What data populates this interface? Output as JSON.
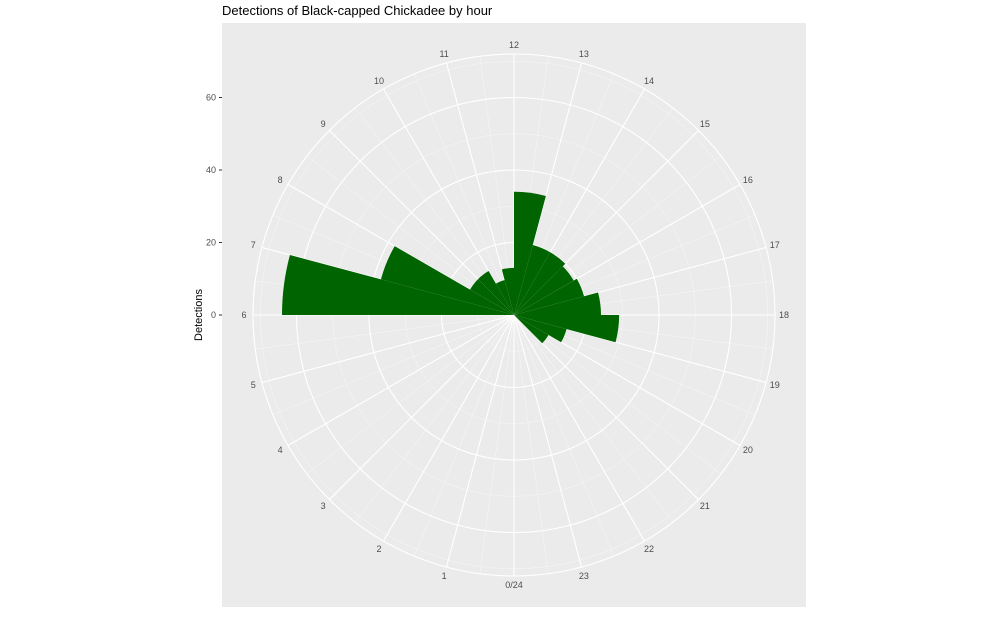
{
  "chart_data": {
    "type": "bar",
    "coordinate_system": "polar",
    "title": "Detections of Black-capped Chickadee by hour",
    "xlabel": "",
    "ylabel": "Detections",
    "categories": [
      "0",
      "1",
      "2",
      "3",
      "4",
      "5",
      "6",
      "7",
      "8",
      "9",
      "10",
      "11",
      "12",
      "13",
      "14",
      "15",
      "16",
      "17",
      "18",
      "19",
      "20",
      "21",
      "22",
      "23"
    ],
    "values": [
      0,
      0,
      0,
      0,
      0,
      0,
      64,
      38,
      14,
      14,
      10,
      13,
      34,
      20,
      20,
      19,
      20,
      24,
      29,
      15,
      11,
      0,
      0,
      0
    ],
    "bar_color": "#006400",
    "hour_labels": [
      "0/24",
      "1",
      "2",
      "3",
      "4",
      "5",
      "6",
      "7",
      "8",
      "9",
      "10",
      "11",
      "12",
      "13",
      "14",
      "15",
      "16",
      "17",
      "18",
      "19",
      "20",
      "21",
      "22",
      "23"
    ],
    "y_ticks": [
      {
        "value": 0,
        "label": "0"
      },
      {
        "value": 20,
        "label": "20"
      },
      {
        "value": 40,
        "label": "40"
      },
      {
        "value": 60,
        "label": "60"
      }
    ],
    "ylim": [
      0,
      72
    ],
    "panel_background": "#ebebeb",
    "grid_color": "#ffffff",
    "grid": true,
    "legend": "none"
  }
}
